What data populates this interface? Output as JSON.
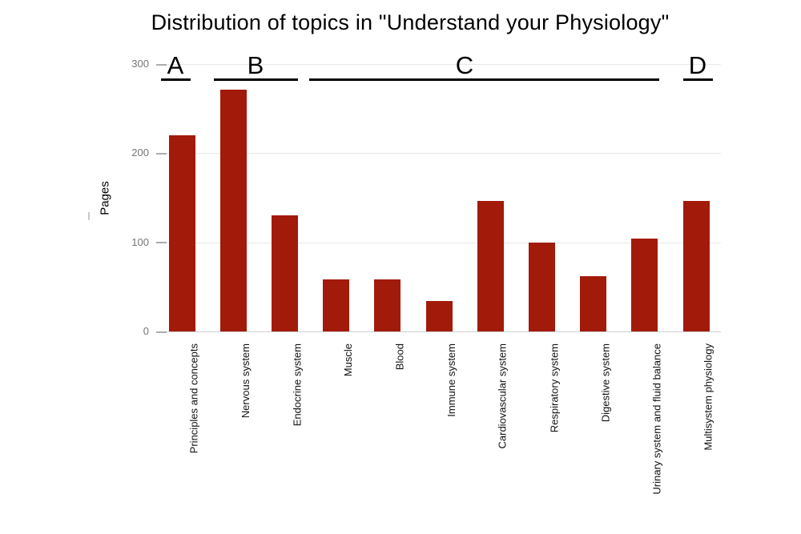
{
  "chart_data": {
    "type": "bar",
    "title": "Distribution of topics in \"Understand your Physiology\"",
    "ylabel": "Pages",
    "xlabel": "",
    "categories": [
      "Principles and concepts",
      "Nervous system",
      "Endocrine system",
      "Muscle",
      "Blood",
      "Immune system",
      "Cardiovascular system",
      "Respiratory system",
      "Digestive system",
      "Urinary system and fluid balance",
      "Multisystem physiology"
    ],
    "values": [
      220,
      271,
      130,
      58,
      58,
      34,
      146,
      100,
      62,
      104,
      146
    ],
    "ylim": [
      0,
      300
    ],
    "yticks": [
      0,
      100,
      200,
      300
    ],
    "grid": true,
    "legend_position": "none",
    "bar_color": "#a21a0a",
    "colors": {
      "bar": "#a21a0a",
      "gridline": "#e8e8e8",
      "baseline": "#cfcfcf",
      "tick_label": "#757575",
      "text": "#000000",
      "annotation": "#000000"
    },
    "group_annotations": [
      {
        "label": "A",
        "from_category": "Principles and concepts",
        "to_category": "Principles and concepts"
      },
      {
        "label": "B",
        "from_category": "Nervous system",
        "to_category": "Endocrine system"
      },
      {
        "label": "C",
        "from_category": "Muscle",
        "to_category": "Urinary system and fluid balance"
      },
      {
        "label": "D",
        "from_category": "Multisystem physiology",
        "to_category": "Multisystem physiology"
      }
    ]
  }
}
